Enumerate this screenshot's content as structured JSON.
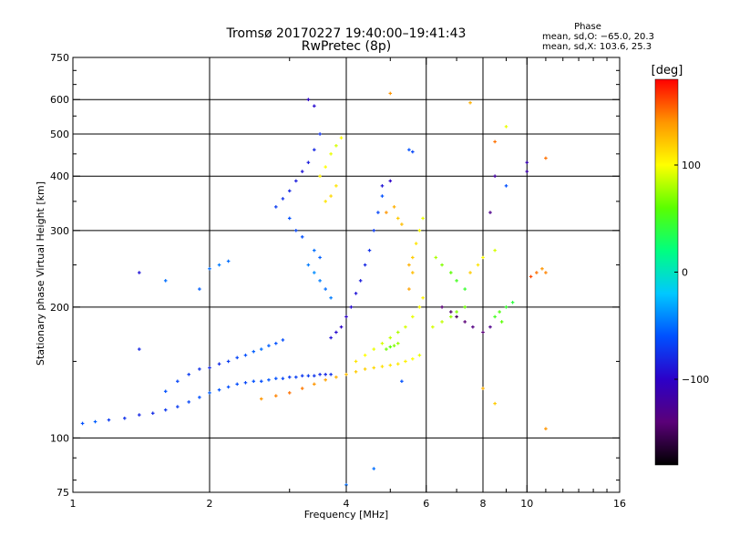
{
  "header": {
    "title_line1": "Tromsø 20170227 19:40:00–19:41:43",
    "title_line2": "RwPretec (8p)"
  },
  "phase_info": {
    "heading": "Phase",
    "line_o": "mean, sd,O: −65.0, 20.3",
    "line_x": "mean, sd,X: 103.6, 25.3"
  },
  "colorbar": {
    "unit": "[deg]",
    "range": [
      -180,
      180
    ],
    "ticks": [
      {
        "value": 100,
        "label": "100"
      },
      {
        "value": 0,
        "label": "0"
      },
      {
        "value": -100,
        "label": "−100"
      }
    ],
    "colors": [
      "#000000",
      "#5a0078",
      "#2c00c8",
      "#0050ff",
      "#00c8ff",
      "#00ff80",
      "#5aff00",
      "#ffff00",
      "#ff9600",
      "#ff0000"
    ]
  },
  "chart_data": {
    "type": "scatter",
    "title": "Tromsø 20170227 19:40:00–19:41:43",
    "subtitle": "RwPretec (8p)",
    "xlabel": "Frequency [MHz]",
    "ylabel": "Stationary phase Virtual Height [km]",
    "xscale": "log",
    "yscale": "log",
    "xlim": [
      1,
      16
    ],
    "ylim": [
      75,
      750
    ],
    "grid": true,
    "x_ticks": [
      {
        "value": 1,
        "label": "1"
      },
      {
        "value": 2,
        "label": "2"
      },
      {
        "value": 4,
        "label": "4"
      },
      {
        "value": 6,
        "label": "6"
      },
      {
        "value": 8,
        "label": "8"
      },
      {
        "value": 10,
        "label": "10"
      },
      {
        "value": 16,
        "label": "16"
      }
    ],
    "y_ticks": [
      {
        "value": 75,
        "label": "75"
      },
      {
        "value": 100,
        "label": "100"
      },
      {
        "value": 200,
        "label": "200"
      },
      {
        "value": 300,
        "label": "300"
      },
      {
        "value": 400,
        "label": "400"
      },
      {
        "value": 500,
        "label": "500"
      },
      {
        "value": 600,
        "label": "600"
      },
      {
        "value": 750,
        "label": "750"
      }
    ],
    "x_minor": [
      3,
      5,
      7,
      9,
      11,
      12,
      13,
      14,
      15
    ],
    "y_minor": [
      80,
      90,
      150,
      250,
      350,
      450,
      550,
      650,
      700
    ],
    "color_by": "phase [deg]",
    "points": [
      [
        1.05,
        108,
        -60
      ],
      [
        1.12,
        109,
        -55
      ],
      [
        1.2,
        110,
        -70
      ],
      [
        1.3,
        111,
        -75
      ],
      [
        1.4,
        113,
        -80
      ],
      [
        1.5,
        114,
        -78
      ],
      [
        1.6,
        116,
        -72
      ],
      [
        1.7,
        118,
        -70
      ],
      [
        1.8,
        121,
        -65
      ],
      [
        1.9,
        124,
        -60
      ],
      [
        2.0,
        127,
        -55
      ],
      [
        2.1,
        129,
        -58
      ],
      [
        2.2,
        131,
        -60
      ],
      [
        2.3,
        133,
        -62
      ],
      [
        2.4,
        134,
        -65
      ],
      [
        2.5,
        135,
        -60
      ],
      [
        2.6,
        135,
        -62
      ],
      [
        2.7,
        136,
        -58
      ],
      [
        2.8,
        137,
        -60
      ],
      [
        2.9,
        137,
        -65
      ],
      [
        3.0,
        138,
        -70
      ],
      [
        3.1,
        138,
        -68
      ],
      [
        3.2,
        139,
        -72
      ],
      [
        3.3,
        139,
        -70
      ],
      [
        3.4,
        139,
        -74
      ],
      [
        3.5,
        140,
        -78
      ],
      [
        3.6,
        140,
        -80
      ],
      [
        3.7,
        140,
        -75
      ],
      [
        1.6,
        128,
        -60
      ],
      [
        1.7,
        135,
        -65
      ],
      [
        1.8,
        140,
        -70
      ],
      [
        1.9,
        144,
        -75
      ],
      [
        2.0,
        145,
        -80
      ],
      [
        2.1,
        148,
        -78
      ],
      [
        2.2,
        150,
        -70
      ],
      [
        2.3,
        153,
        -65
      ],
      [
        2.4,
        155,
        -60
      ],
      [
        2.5,
        158,
        -55
      ],
      [
        2.6,
        160,
        -50
      ],
      [
        2.7,
        163,
        -55
      ],
      [
        2.8,
        165,
        -60
      ],
      [
        2.9,
        168,
        -62
      ],
      [
        2.6,
        123,
        140
      ],
      [
        2.8,
        125,
        145
      ],
      [
        3.0,
        127,
        150
      ],
      [
        3.2,
        130,
        148
      ],
      [
        3.4,
        133,
        140
      ],
      [
        3.6,
        136,
        135
      ],
      [
        3.8,
        138,
        130
      ],
      [
        4.0,
        140,
        125
      ],
      [
        4.2,
        142,
        120
      ],
      [
        4.4,
        144,
        118
      ],
      [
        4.6,
        145,
        115
      ],
      [
        4.8,
        146,
        112
      ],
      [
        5.0,
        147,
        110
      ],
      [
        5.2,
        148,
        108
      ],
      [
        5.4,
        150,
        105
      ],
      [
        5.6,
        152,
        100
      ],
      [
        5.8,
        155,
        95
      ],
      [
        4.2,
        150,
        110
      ],
      [
        4.4,
        155,
        100
      ],
      [
        4.6,
        160,
        95
      ],
      [
        4.8,
        165,
        90
      ],
      [
        5.0,
        170,
        85
      ],
      [
        5.2,
        175,
        80
      ],
      [
        5.4,
        180,
        90
      ],
      [
        5.6,
        190,
        95
      ],
      [
        5.8,
        200,
        100
      ],
      [
        5.9,
        210,
        105
      ],
      [
        4.9,
        160,
        65
      ],
      [
        5.0,
        162,
        60
      ],
      [
        5.1,
        163,
        70
      ],
      [
        5.2,
        165,
        75
      ],
      [
        3.7,
        170,
        -90
      ],
      [
        3.8,
        175,
        -95
      ],
      [
        3.9,
        180,
        -100
      ],
      [
        4.0,
        190,
        -100
      ],
      [
        4.1,
        200,
        -95
      ],
      [
        4.2,
        215,
        -90
      ],
      [
        4.3,
        230,
        -85
      ],
      [
        4.4,
        250,
        -80
      ],
      [
        4.5,
        270,
        -75
      ],
      [
        4.6,
        300,
        -70
      ],
      [
        4.7,
        330,
        -65
      ],
      [
        4.8,
        360,
        -60
      ],
      [
        2.8,
        340,
        -70
      ],
      [
        2.9,
        355,
        -75
      ],
      [
        3.0,
        370,
        -80
      ],
      [
        3.1,
        390,
        -85
      ],
      [
        3.2,
        410,
        -90
      ],
      [
        3.3,
        430,
        -85
      ],
      [
        3.4,
        460,
        -80
      ],
      [
        3.5,
        500,
        -75
      ],
      [
        3.0,
        320,
        -60
      ],
      [
        3.1,
        300,
        -65
      ],
      [
        3.2,
        290,
        -60
      ],
      [
        3.3,
        600,
        -100
      ],
      [
        3.4,
        580,
        -95
      ],
      [
        3.3,
        250,
        -45
      ],
      [
        3.4,
        240,
        -40
      ],
      [
        3.5,
        230,
        -45
      ],
      [
        3.6,
        220,
        -50
      ],
      [
        3.7,
        210,
        -45
      ],
      [
        3.4,
        270,
        -50
      ],
      [
        3.5,
        260,
        -55
      ],
      [
        3.6,
        350,
        110
      ],
      [
        3.7,
        360,
        115
      ],
      [
        3.8,
        380,
        110
      ],
      [
        3.6,
        420,
        100
      ],
      [
        3.7,
        450,
        95
      ],
      [
        3.8,
        470,
        90
      ],
      [
        3.9,
        490,
        100
      ],
      [
        3.5,
        400,
        105
      ],
      [
        5.5,
        250,
        130
      ],
      [
        5.6,
        260,
        120
      ],
      [
        5.7,
        280,
        110
      ],
      [
        5.8,
        300,
        100
      ],
      [
        5.9,
        320,
        95
      ],
      [
        5.5,
        220,
        135
      ],
      [
        5.6,
        240,
        125
      ],
      [
        6.3,
        260,
        80
      ],
      [
        6.5,
        250,
        70
      ],
      [
        6.8,
        240,
        60
      ],
      [
        7.0,
        230,
        50
      ],
      [
        7.3,
        220,
        45
      ],
      [
        6.2,
        180,
        90
      ],
      [
        6.5,
        185,
        85
      ],
      [
        6.8,
        190,
        75
      ],
      [
        7.0,
        195,
        70
      ],
      [
        7.3,
        200,
        65
      ],
      [
        6.5,
        200,
        -140
      ],
      [
        6.8,
        195,
        -145
      ],
      [
        7.0,
        190,
        -150
      ],
      [
        7.3,
        185,
        -140
      ],
      [
        7.6,
        180,
        -135
      ],
      [
        8.0,
        175,
        -140
      ],
      [
        8.3,
        180,
        -130
      ],
      [
        8.5,
        190,
        50
      ],
      [
        8.7,
        195,
        55
      ],
      [
        9.0,
        200,
        45
      ],
      [
        9.3,
        205,
        40
      ],
      [
        8.8,
        185,
        60
      ],
      [
        7.5,
        240,
        120
      ],
      [
        7.8,
        250,
        110
      ],
      [
        8.0,
        260,
        100
      ],
      [
        8.5,
        270,
        90
      ],
      [
        10.5,
        240,
        150
      ],
      [
        10.8,
        245,
        140
      ],
      [
        11.0,
        240,
        145
      ],
      [
        10.2,
        235,
        160
      ],
      [
        1.4,
        240,
        -90
      ],
      [
        1.4,
        160,
        -80
      ],
      [
        1.6,
        230,
        -50
      ],
      [
        1.9,
        220,
        -55
      ],
      [
        2.0,
        245,
        -50
      ],
      [
        2.1,
        250,
        -45
      ],
      [
        2.2,
        255,
        -50
      ],
      [
        5.0,
        620,
        140
      ],
      [
        5.5,
        460,
        -60
      ],
      [
        5.6,
        455,
        -65
      ],
      [
        7.5,
        590,
        130
      ],
      [
        8.5,
        480,
        150
      ],
      [
        9.0,
        520,
        95
      ],
      [
        8.5,
        400,
        -120
      ],
      [
        10.0,
        430,
        -110
      ],
      [
        10.0,
        410,
        -115
      ],
      [
        8.3,
        330,
        -130
      ],
      [
        9.0,
        380,
        -60
      ],
      [
        11.0,
        440,
        150
      ],
      [
        11.0,
        105,
        140
      ],
      [
        4.0,
        78,
        -50
      ],
      [
        4.6,
        85,
        -50
      ],
      [
        8.0,
        130,
        130
      ],
      [
        8.5,
        120,
        120
      ],
      [
        5.3,
        135,
        -60
      ],
      [
        5.0,
        390,
        -100
      ],
      [
        4.8,
        380,
        -90
      ],
      [
        4.9,
        330,
        140
      ],
      [
        5.1,
        340,
        130
      ],
      [
        5.2,
        320,
        120
      ],
      [
        5.3,
        310,
        125
      ]
    ]
  }
}
